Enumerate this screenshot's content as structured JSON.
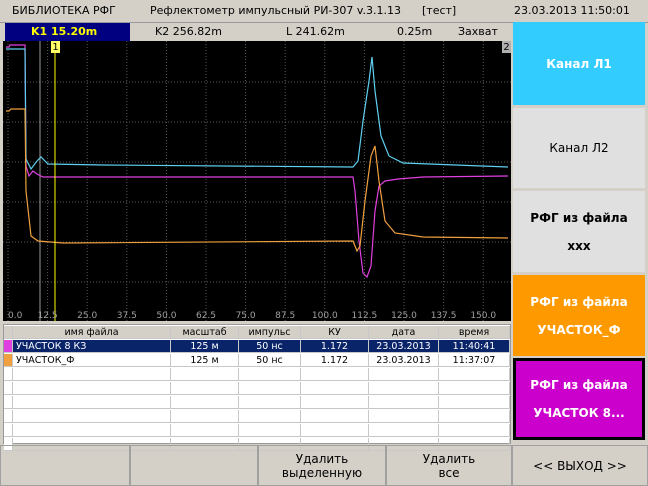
{
  "header": {
    "library": "БИБЛИОТЕКА РФГ",
    "title": "Рефлектометр импульсный РИ-307 v.3.1.13",
    "mode": "[тест]",
    "datetime": "23.03.2013 11:50:01"
  },
  "cursor_bar": {
    "k1": "K1 15.20m",
    "k2": "K2 256.82m",
    "length": "L 241.62m",
    "step": "0.25m",
    "capture": "Захват"
  },
  "plot": {
    "markers": [
      "1",
      "2"
    ],
    "x_ticks": [
      "0.0",
      "12.5",
      "25.0",
      "37.5",
      "50.0",
      "62.5",
      "75.0",
      "87.5",
      "100.0",
      "112.5",
      "125.0",
      "137.5",
      "150.0"
    ]
  },
  "table": {
    "columns": [
      "имя файла",
      "масштаб",
      "импульс",
      "КУ",
      "дата",
      "время"
    ],
    "rows": [
      [
        "УЧАСТОК 8 КЗ",
        "125 м",
        "50 нс",
        "1.172",
        "23.03.2013",
        "11:40:41"
      ],
      [
        "УЧАСТОК_Ф",
        "125 м",
        "50 нс",
        "1.172",
        "23.03.2013",
        "11:37:07"
      ]
    ]
  },
  "side_buttons": [
    {
      "lines": [
        "Канал Л1"
      ]
    },
    {
      "lines": [
        "Канал Л2"
      ]
    },
    {
      "lines": [
        "РФГ из файла",
        "xxx"
      ]
    },
    {
      "lines": [
        "РФГ из файла",
        "УЧАСТОК_Ф"
      ]
    },
    {
      "lines": [
        "РФГ из файла",
        "УЧАСТОК 8..."
      ]
    }
  ],
  "bottom_buttons": [
    {
      "lines": [
        "Удалить",
        "выделенную"
      ]
    },
    {
      "lines": [
        "Удалить",
        "все"
      ]
    },
    {
      "lines": [
        "<< ВЫХОД >>"
      ]
    }
  ]
}
